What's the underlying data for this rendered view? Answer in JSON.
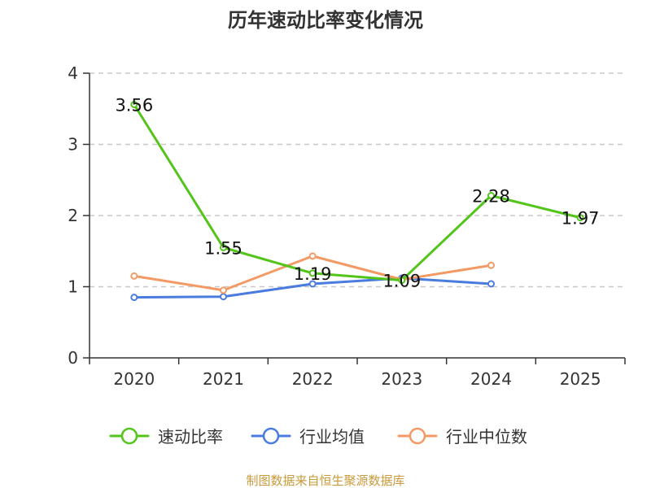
{
  "footer": "制图数据来自恒生聚源数据库",
  "chart_data": {
    "type": "line",
    "title": "历年速动比率变化情况",
    "categories": [
      "2020",
      "2021",
      "2022",
      "2023",
      "2024",
      "2025"
    ],
    "ylim": [
      0,
      4
    ],
    "yticks": [
      0,
      1,
      2,
      3,
      4
    ],
    "grid": true,
    "legend_position": "bottom",
    "xlabel": "",
    "ylabel": "",
    "series": [
      {
        "name": "速动比率",
        "color": "#52c41a",
        "values": [
          3.56,
          1.55,
          1.19,
          1.09,
          2.28,
          1.97
        ],
        "labels": [
          "3.56",
          "1.55",
          "1.19",
          "1.09",
          "2.28",
          "1.97"
        ]
      },
      {
        "name": "行业均值",
        "color": "#4a7cdf",
        "values": [
          0.85,
          0.86,
          1.04,
          1.12,
          1.04,
          null
        ],
        "labels": [
          "",
          "",
          "",
          "",
          "",
          ""
        ]
      },
      {
        "name": "行业中位数",
        "color": "#f39a64",
        "values": [
          1.15,
          0.95,
          1.43,
          1.1,
          1.3,
          null
        ],
        "labels": [
          "",
          "",
          "",
          "",
          "",
          ""
        ]
      }
    ]
  }
}
